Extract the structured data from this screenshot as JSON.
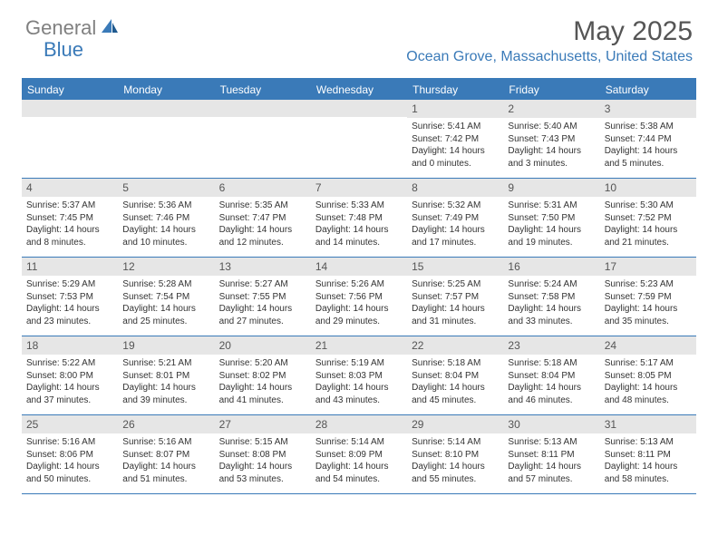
{
  "brand": {
    "general": "General",
    "blue": "Blue"
  },
  "title": "May 2025",
  "location": "Ocean Grove, Massachusetts, United States",
  "colors": {
    "accent": "#3a7ab8",
    "header_text": "#ffffff",
    "daynum_bg": "#e6e6e6",
    "text": "#333333",
    "muted": "#808080"
  },
  "day_names": [
    "Sunday",
    "Monday",
    "Tuesday",
    "Wednesday",
    "Thursday",
    "Friday",
    "Saturday"
  ],
  "weeks": [
    [
      null,
      null,
      null,
      null,
      {
        "n": "1",
        "sr": "5:41 AM",
        "ss": "7:42 PM",
        "dl": "14 hours and 0 minutes."
      },
      {
        "n": "2",
        "sr": "5:40 AM",
        "ss": "7:43 PM",
        "dl": "14 hours and 3 minutes."
      },
      {
        "n": "3",
        "sr": "5:38 AM",
        "ss": "7:44 PM",
        "dl": "14 hours and 5 minutes."
      }
    ],
    [
      {
        "n": "4",
        "sr": "5:37 AM",
        "ss": "7:45 PM",
        "dl": "14 hours and 8 minutes."
      },
      {
        "n": "5",
        "sr": "5:36 AM",
        "ss": "7:46 PM",
        "dl": "14 hours and 10 minutes."
      },
      {
        "n": "6",
        "sr": "5:35 AM",
        "ss": "7:47 PM",
        "dl": "14 hours and 12 minutes."
      },
      {
        "n": "7",
        "sr": "5:33 AM",
        "ss": "7:48 PM",
        "dl": "14 hours and 14 minutes."
      },
      {
        "n": "8",
        "sr": "5:32 AM",
        "ss": "7:49 PM",
        "dl": "14 hours and 17 minutes."
      },
      {
        "n": "9",
        "sr": "5:31 AM",
        "ss": "7:50 PM",
        "dl": "14 hours and 19 minutes."
      },
      {
        "n": "10",
        "sr": "5:30 AM",
        "ss": "7:52 PM",
        "dl": "14 hours and 21 minutes."
      }
    ],
    [
      {
        "n": "11",
        "sr": "5:29 AM",
        "ss": "7:53 PM",
        "dl": "14 hours and 23 minutes."
      },
      {
        "n": "12",
        "sr": "5:28 AM",
        "ss": "7:54 PM",
        "dl": "14 hours and 25 minutes."
      },
      {
        "n": "13",
        "sr": "5:27 AM",
        "ss": "7:55 PM",
        "dl": "14 hours and 27 minutes."
      },
      {
        "n": "14",
        "sr": "5:26 AM",
        "ss": "7:56 PM",
        "dl": "14 hours and 29 minutes."
      },
      {
        "n": "15",
        "sr": "5:25 AM",
        "ss": "7:57 PM",
        "dl": "14 hours and 31 minutes."
      },
      {
        "n": "16",
        "sr": "5:24 AM",
        "ss": "7:58 PM",
        "dl": "14 hours and 33 minutes."
      },
      {
        "n": "17",
        "sr": "5:23 AM",
        "ss": "7:59 PM",
        "dl": "14 hours and 35 minutes."
      }
    ],
    [
      {
        "n": "18",
        "sr": "5:22 AM",
        "ss": "8:00 PM",
        "dl": "14 hours and 37 minutes."
      },
      {
        "n": "19",
        "sr": "5:21 AM",
        "ss": "8:01 PM",
        "dl": "14 hours and 39 minutes."
      },
      {
        "n": "20",
        "sr": "5:20 AM",
        "ss": "8:02 PM",
        "dl": "14 hours and 41 minutes."
      },
      {
        "n": "21",
        "sr": "5:19 AM",
        "ss": "8:03 PM",
        "dl": "14 hours and 43 minutes."
      },
      {
        "n": "22",
        "sr": "5:18 AM",
        "ss": "8:04 PM",
        "dl": "14 hours and 45 minutes."
      },
      {
        "n": "23",
        "sr": "5:18 AM",
        "ss": "8:04 PM",
        "dl": "14 hours and 46 minutes."
      },
      {
        "n": "24",
        "sr": "5:17 AM",
        "ss": "8:05 PM",
        "dl": "14 hours and 48 minutes."
      }
    ],
    [
      {
        "n": "25",
        "sr": "5:16 AM",
        "ss": "8:06 PM",
        "dl": "14 hours and 50 minutes."
      },
      {
        "n": "26",
        "sr": "5:16 AM",
        "ss": "8:07 PM",
        "dl": "14 hours and 51 minutes."
      },
      {
        "n": "27",
        "sr": "5:15 AM",
        "ss": "8:08 PM",
        "dl": "14 hours and 53 minutes."
      },
      {
        "n": "28",
        "sr": "5:14 AM",
        "ss": "8:09 PM",
        "dl": "14 hours and 54 minutes."
      },
      {
        "n": "29",
        "sr": "5:14 AM",
        "ss": "8:10 PM",
        "dl": "14 hours and 55 minutes."
      },
      {
        "n": "30",
        "sr": "5:13 AM",
        "ss": "8:11 PM",
        "dl": "14 hours and 57 minutes."
      },
      {
        "n": "31",
        "sr": "5:13 AM",
        "ss": "8:11 PM",
        "dl": "14 hours and 58 minutes."
      }
    ]
  ],
  "labels": {
    "sunrise": "Sunrise:",
    "sunset": "Sunset:",
    "daylight": "Daylight:"
  }
}
